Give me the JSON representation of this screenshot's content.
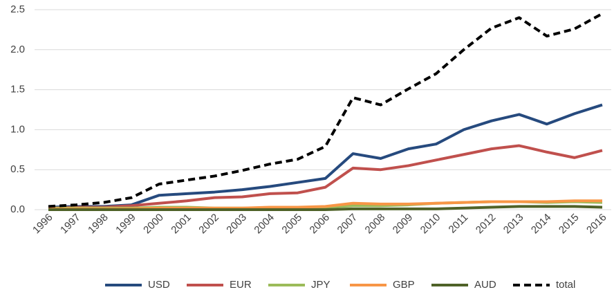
{
  "chart_data": {
    "type": "line",
    "categories": [
      "1996",
      "1997",
      "1998",
      "1999",
      "2000",
      "2001",
      "2002",
      "2003",
      "2004",
      "2005",
      "2006",
      "2007",
      "2008",
      "2009",
      "2010",
      "2011",
      "2012",
      "2013",
      "2014",
      "2015",
      "2016"
    ],
    "series": [
      {
        "name": "USD",
        "color": "#264a7e",
        "values": [
          0.03,
          0.04,
          0.04,
          0.06,
          0.18,
          0.2,
          0.22,
          0.25,
          0.29,
          0.34,
          0.39,
          0.7,
          0.64,
          0.76,
          0.82,
          1.0,
          1.11,
          1.19,
          1.07,
          1.2,
          1.31
        ]
      },
      {
        "name": "EUR",
        "color": "#c0504d",
        "values": [
          0.02,
          0.03,
          0.03,
          0.05,
          0.08,
          0.11,
          0.15,
          0.16,
          0.2,
          0.21,
          0.28,
          0.52,
          0.5,
          0.55,
          0.62,
          0.69,
          0.76,
          0.8,
          0.72,
          0.65,
          0.74
        ]
      },
      {
        "name": "JPY",
        "color": "#9bbb59",
        "values": [
          0.02,
          0.02,
          0.02,
          0.02,
          0.03,
          0.03,
          0.02,
          0.02,
          0.02,
          0.02,
          0.03,
          0.05,
          0.05,
          0.06,
          0.08,
          0.09,
          0.1,
          0.1,
          0.09,
          0.1,
          0.09
        ]
      },
      {
        "name": "GBP",
        "color": "#f79646",
        "values": [
          0.01,
          0.01,
          0.01,
          0.01,
          0.02,
          0.02,
          0.02,
          0.02,
          0.03,
          0.03,
          0.04,
          0.08,
          0.07,
          0.07,
          0.08,
          0.09,
          0.1,
          0.1,
          0.1,
          0.11,
          0.11
        ]
      },
      {
        "name": "AUD",
        "color": "#4f6228",
        "values": [
          0,
          0,
          0,
          0,
          0,
          0,
          0,
          0,
          0,
          0,
          0,
          0.01,
          0.01,
          0.01,
          0.01,
          0.02,
          0.03,
          0.04,
          0.04,
          0.04,
          0.03
        ]
      },
      {
        "name": "total",
        "color": "#000000",
        "dashed": true,
        "values": [
          0.04,
          0.06,
          0.09,
          0.15,
          0.32,
          0.37,
          0.42,
          0.49,
          0.57,
          0.63,
          0.79,
          1.4,
          1.31,
          1.51,
          1.7,
          2.0,
          2.27,
          2.4,
          2.17,
          2.26,
          2.45
        ]
      }
    ],
    "ylim": [
      0,
      2.5
    ],
    "yticks": [
      {
        "value": 0,
        "label": "0.0"
      },
      {
        "value": 0.5,
        "label": "0.5"
      },
      {
        "value": 1,
        "label": "1.0"
      },
      {
        "value": 1.5,
        "label": "1.5"
      },
      {
        "value": 2,
        "label": "2.0"
      },
      {
        "value": 2.5,
        "label": "2.5"
      }
    ],
    "grid": true,
    "legend": "bottom"
  }
}
